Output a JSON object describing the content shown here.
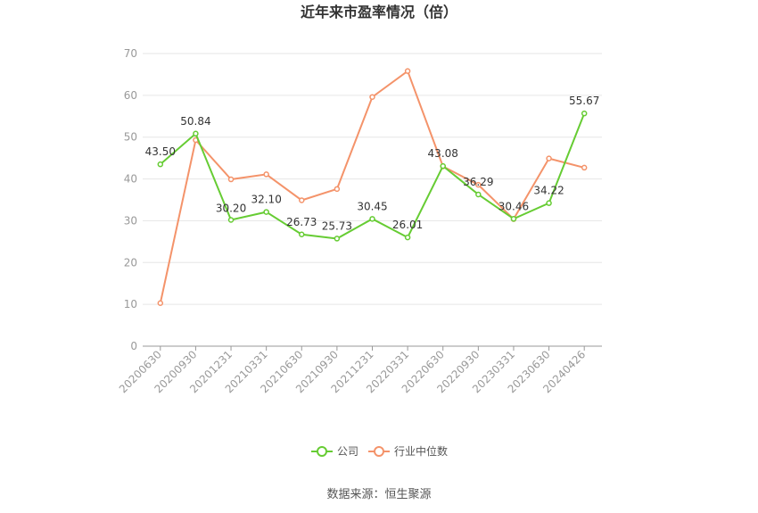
{
  "chart_data": {
    "type": "line",
    "title": "近年来市盈率情况（倍）",
    "categories": [
      "20200630",
      "20200930",
      "20201231",
      "20210331",
      "20210630",
      "20210930",
      "20211231",
      "20220331",
      "20220630",
      "20220930",
      "20230331",
      "20230630",
      "20240426"
    ],
    "ylim": [
      0,
      70
    ],
    "yticks": [
      0,
      10,
      20,
      30,
      40,
      50,
      60,
      70
    ],
    "grid": true,
    "legend_position": "bottom-center",
    "series": [
      {
        "name": "公司",
        "color": "#66cc33",
        "values": [
          43.5,
          50.84,
          30.2,
          32.1,
          26.73,
          25.73,
          30.45,
          26.01,
          43.08,
          36.29,
          30.46,
          34.22,
          55.67
        ],
        "labels": [
          "43.50",
          "50.84",
          "30.20",
          "32.10",
          "26.73",
          "25.73",
          "30.45",
          "26.01",
          "43.08",
          "36.29",
          "30.46",
          "34.22",
          "55.67"
        ]
      },
      {
        "name": "行业中位数",
        "color": "#f4936a",
        "values": [
          10.3,
          49.3,
          39.9,
          41.1,
          34.9,
          37.6,
          59.6,
          65.8,
          43.0,
          38.6,
          30.4,
          44.9,
          42.7
        ]
      }
    ]
  },
  "footer": {
    "source": "数据来源：恒生聚源"
  }
}
